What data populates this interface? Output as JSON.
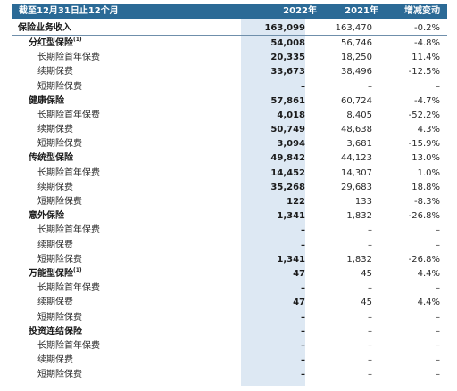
{
  "header": {
    "period": "截至12月31日止12个月",
    "col_2022": "2022年",
    "col_2021": "2021年",
    "col_change": "增减变动"
  },
  "rows": [
    {
      "label": "保险业务收入",
      "note": "",
      "v2022": "163,099",
      "v2021": "163,470",
      "change": "-0.2%",
      "level": "top"
    },
    {
      "label": "分红型保险",
      "note": "(1)",
      "v2022": "54,008",
      "v2021": "56,746",
      "change": "-4.8%",
      "level": "sub"
    },
    {
      "label": "长期险首年保费",
      "note": "",
      "v2022": "20,335",
      "v2021": "18,250",
      "change": "11.4%",
      "level": "det"
    },
    {
      "label": "续期保费",
      "note": "",
      "v2022": "33,673",
      "v2021": "38,496",
      "change": "-12.5%",
      "level": "det"
    },
    {
      "label": "短期险保费",
      "note": "",
      "v2022": "–",
      "v2021": "–",
      "change": "–",
      "level": "det"
    },
    {
      "label": "健康保险",
      "note": "",
      "v2022": "57,861",
      "v2021": "60,724",
      "change": "-4.7%",
      "level": "sub"
    },
    {
      "label": "长期险首年保费",
      "note": "",
      "v2022": "4,018",
      "v2021": "8,405",
      "change": "-52.2%",
      "level": "det"
    },
    {
      "label": "续期保费",
      "note": "",
      "v2022": "50,749",
      "v2021": "48,638",
      "change": "4.3%",
      "level": "det"
    },
    {
      "label": "短期险保费",
      "note": "",
      "v2022": "3,094",
      "v2021": "3,681",
      "change": "-15.9%",
      "level": "det"
    },
    {
      "label": "传统型保险",
      "note": "",
      "v2022": "49,842",
      "v2021": "44,123",
      "change": "13.0%",
      "level": "sub"
    },
    {
      "label": "长期险首年保费",
      "note": "",
      "v2022": "14,452",
      "v2021": "14,307",
      "change": "1.0%",
      "level": "det"
    },
    {
      "label": "续期保费",
      "note": "",
      "v2022": "35,268",
      "v2021": "29,683",
      "change": "18.8%",
      "level": "det"
    },
    {
      "label": "短期险保费",
      "note": "",
      "v2022": "122",
      "v2021": "133",
      "change": "-8.3%",
      "level": "det"
    },
    {
      "label": "意外保险",
      "note": "",
      "v2022": "1,341",
      "v2021": "1,832",
      "change": "-26.8%",
      "level": "sub"
    },
    {
      "label": "长期险首年保费",
      "note": "",
      "v2022": "–",
      "v2021": "–",
      "change": "–",
      "level": "det"
    },
    {
      "label": "续期保费",
      "note": "",
      "v2022": "–",
      "v2021": "–",
      "change": "–",
      "level": "det"
    },
    {
      "label": "短期险保费",
      "note": "",
      "v2022": "1,341",
      "v2021": "1,832",
      "change": "-26.8%",
      "level": "det"
    },
    {
      "label": "万能型保险",
      "note": "(1)",
      "v2022": "47",
      "v2021": "45",
      "change": "4.4%",
      "level": "sub"
    },
    {
      "label": "长期险首年保费",
      "note": "",
      "v2022": "–",
      "v2021": "–",
      "change": "–",
      "level": "det"
    },
    {
      "label": "续期保费",
      "note": "",
      "v2022": "47",
      "v2021": "45",
      "change": "4.4%",
      "level": "det"
    },
    {
      "label": "短期险保费",
      "note": "",
      "v2022": "–",
      "v2021": "–",
      "change": "–",
      "level": "det"
    },
    {
      "label": "投资连结保险",
      "note": "",
      "v2022": "–",
      "v2021": "–",
      "change": "–",
      "level": "sub"
    },
    {
      "label": "长期险首年保费",
      "note": "",
      "v2022": "–",
      "v2021": "–",
      "change": "–",
      "level": "det"
    },
    {
      "label": "续期保费",
      "note": "",
      "v2022": "–",
      "v2021": "–",
      "change": "–",
      "level": "det"
    },
    {
      "label": "短期险保费",
      "note": "",
      "v2022": "–",
      "v2021": "–",
      "change": "–",
      "level": "det"
    }
  ]
}
